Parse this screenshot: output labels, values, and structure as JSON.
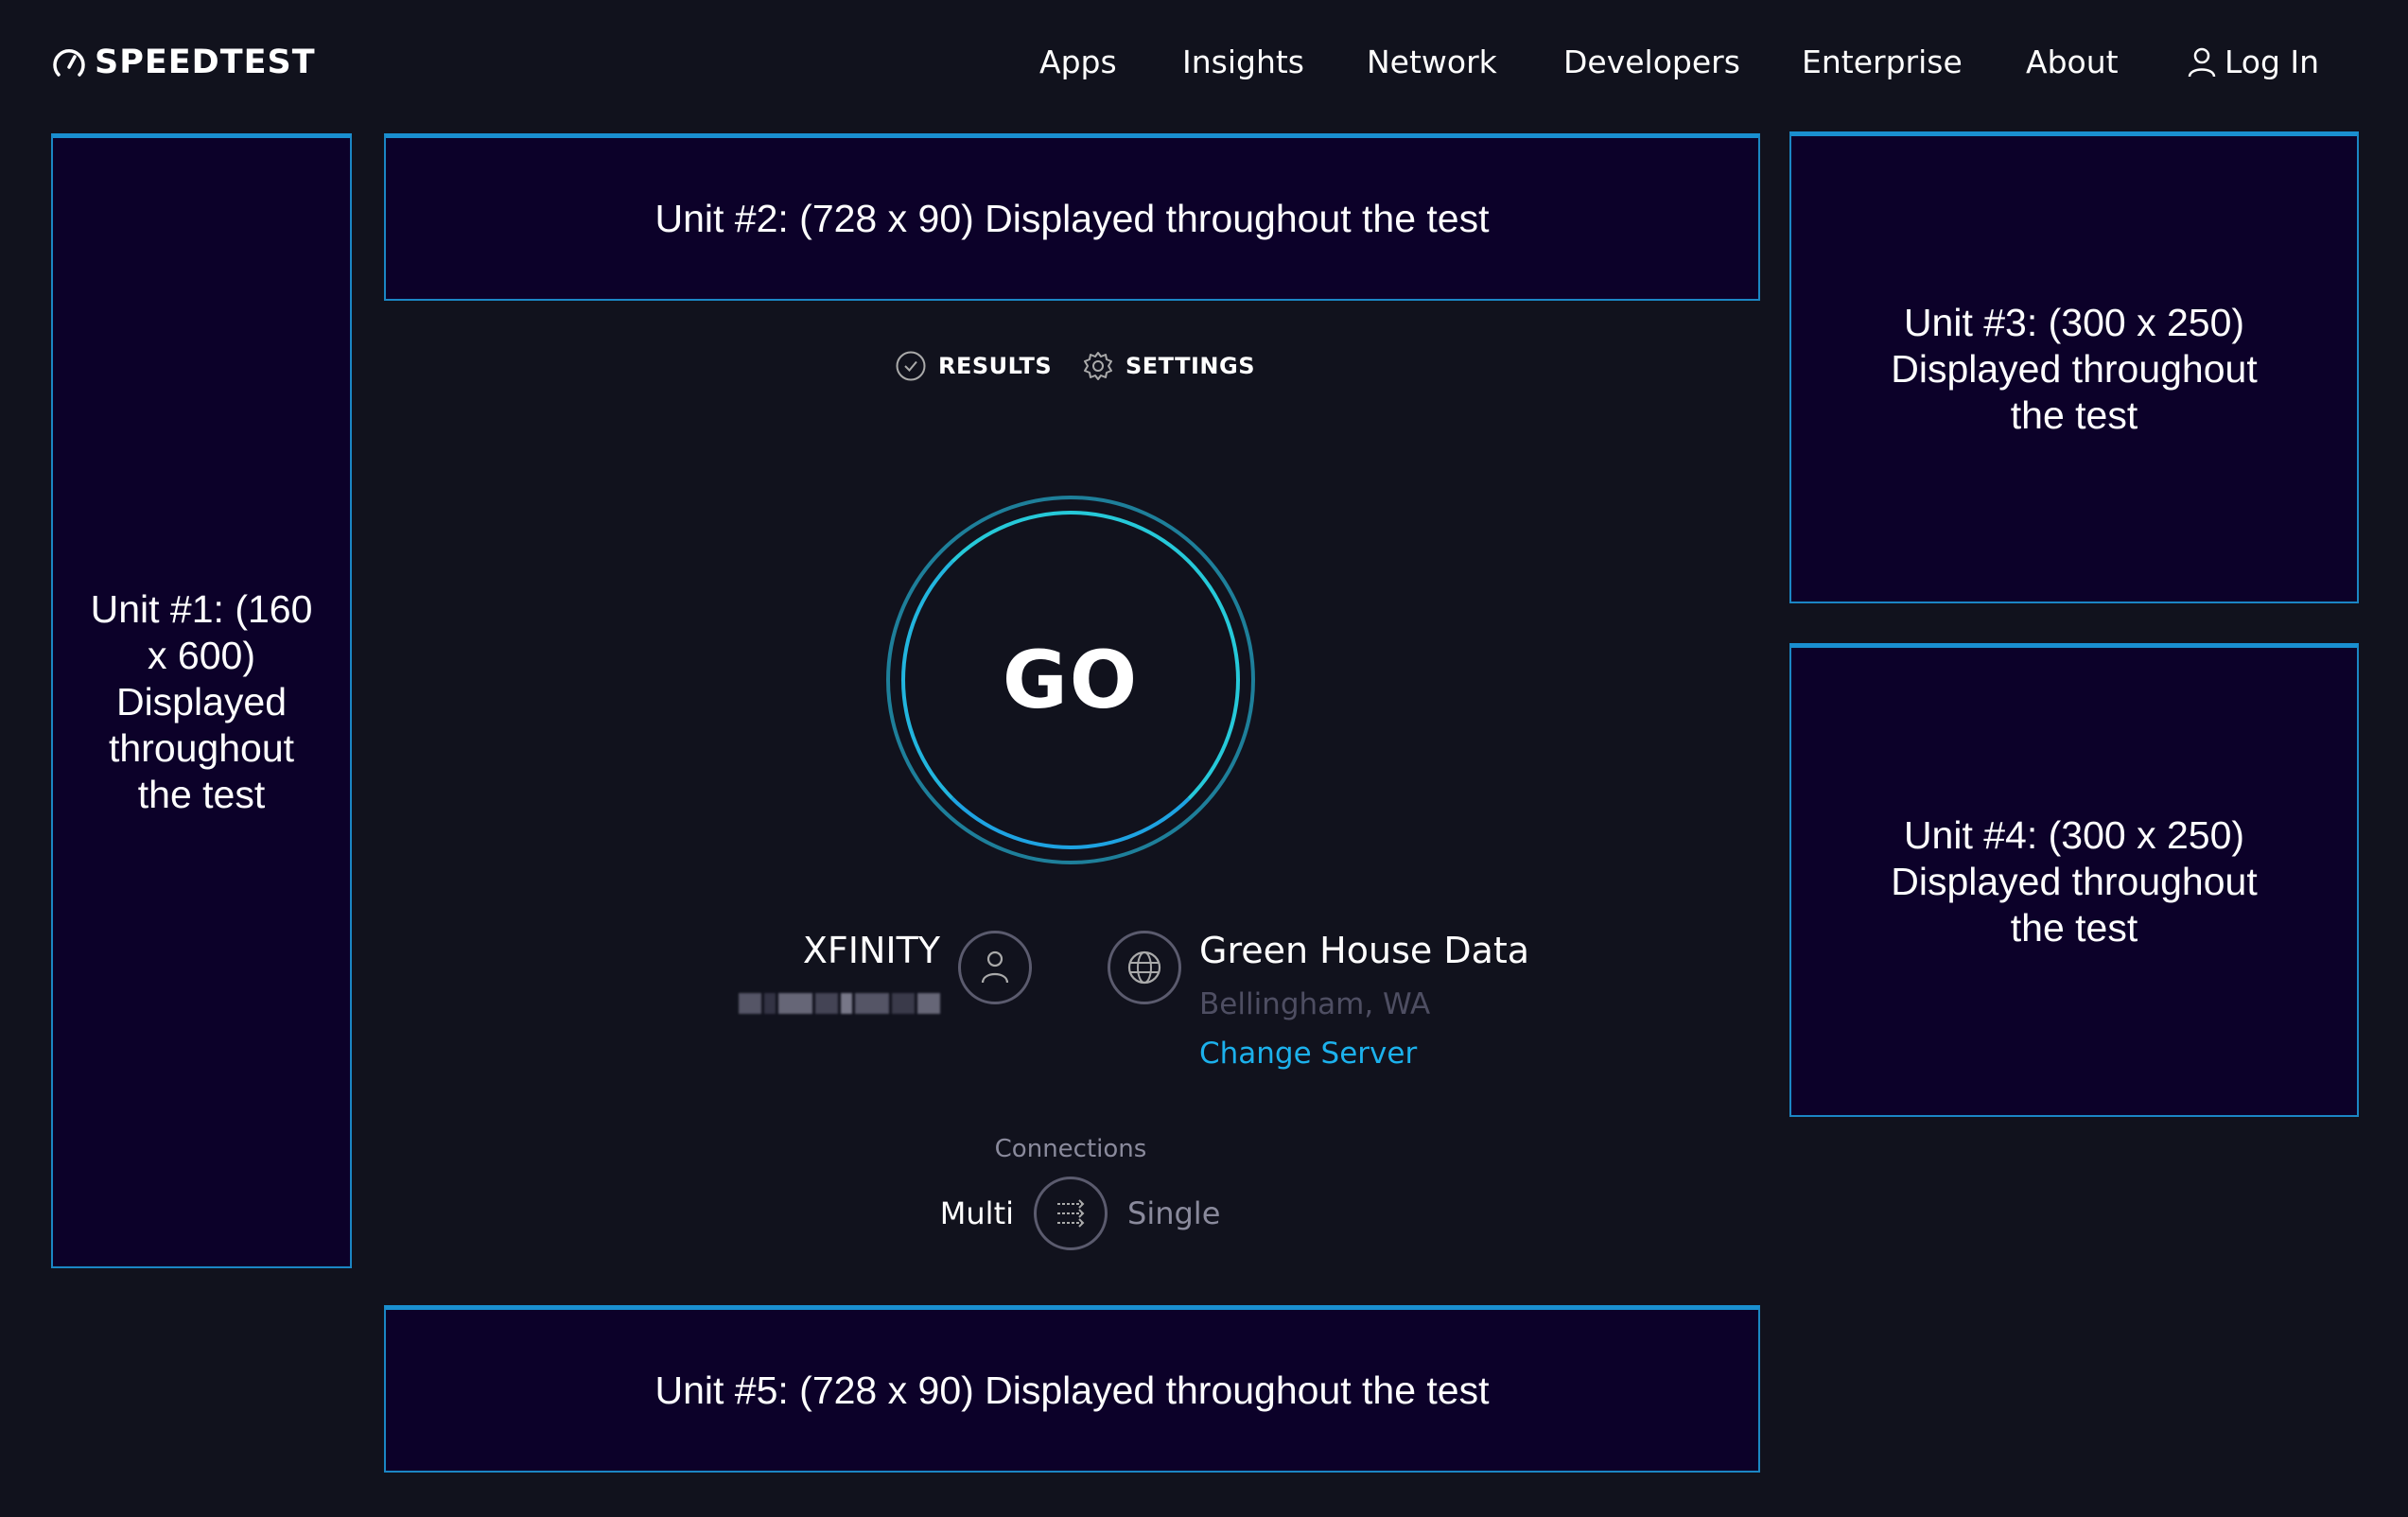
{
  "header": {
    "logo_text": "SPEEDTEST",
    "nav": [
      "Apps",
      "Insights",
      "Network",
      "Developers",
      "Enterprise",
      "About"
    ],
    "login": "Log In"
  },
  "ads": {
    "unit1": "Unit #1: (160 x 600) Displayed throughout the test",
    "unit2": "Unit #2: (728 x 90) Displayed throughout the test",
    "unit3": "Unit #3: (300 x 250) Displayed throughout the test",
    "unit4": "Unit #4: (300 x 250) Displayed throughout the test",
    "unit5": "Unit #5: (728 x 90) Displayed throughout the test"
  },
  "tabs": {
    "results": "RESULTS",
    "settings": "SETTINGS"
  },
  "go_label": "GO",
  "isp": {
    "name": "XFINITY"
  },
  "server": {
    "name": "Green House Data",
    "location": "Bellingham, WA",
    "change_label": "Change Server"
  },
  "connections": {
    "label": "Connections",
    "multi": "Multi",
    "single": "Single",
    "selected": "Multi"
  },
  "colors": {
    "background": "#11121d",
    "accent": "#1cb1ec",
    "ad_border": "#1a8fd0",
    "ad_bg": "#0c0129"
  }
}
